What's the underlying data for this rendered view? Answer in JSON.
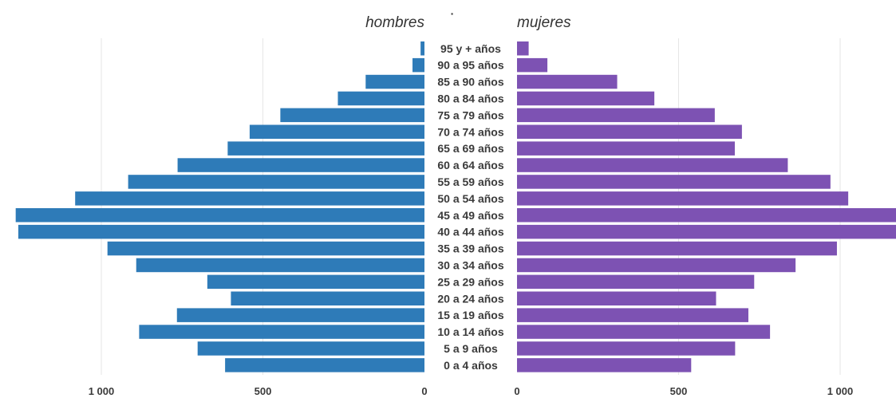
{
  "chart_data": {
    "type": "bar",
    "orientation": "horizontal",
    "layout": "population-pyramid",
    "titles": {
      "left": "hombres",
      "right": "mujeres",
      "center_mark": "·"
    },
    "categories": [
      "0 a 4 años",
      "5 a 9 años",
      "10 a 14 años",
      "15 a 19 años",
      "20 a 24 años",
      "25 a 29 años",
      "30 a 34 años",
      "35 a 39 años",
      "40 a 44 años",
      "45 a 49 años",
      "50 a 54 años",
      "55 a 59 años",
      "60 a 64 años",
      "65 a 69 años",
      "70 a 74 años",
      "75 a 79 años",
      "80 a 84 años",
      "85 a 90 años",
      "90 a 95 años",
      "95 y + años"
    ],
    "series": [
      {
        "name": "hombres",
        "side": "left",
        "color": "#2e7bb8",
        "values": [
          617,
          702,
          883,
          766,
          599,
          672,
          892,
          981,
          1257,
          1265,
          1081,
          917,
          764,
          609,
          541,
          446,
          268,
          182,
          37,
          12
        ]
      },
      {
        "name": "mujeres",
        "side": "right",
        "color": "#7d52b3",
        "values": [
          539,
          675,
          783,
          716,
          616,
          734,
          862,
          990,
          1240,
          1240,
          1025,
          970,
          838,
          674,
          696,
          612,
          425,
          310,
          94,
          36
        ]
      }
    ],
    "x_ticks": {
      "left": [
        {
          "value": 1000,
          "label": "1 000"
        },
        {
          "value": 500,
          "label": "500"
        },
        {
          "value": 0,
          "label": "0"
        }
      ],
      "right": [
        {
          "value": 0,
          "label": "0"
        },
        {
          "value": 500,
          "label": "500"
        },
        {
          "value": 1000,
          "label": "1 000"
        }
      ]
    },
    "xlim": [
      0,
      1240
    ],
    "grid": true,
    "legend": "none"
  }
}
